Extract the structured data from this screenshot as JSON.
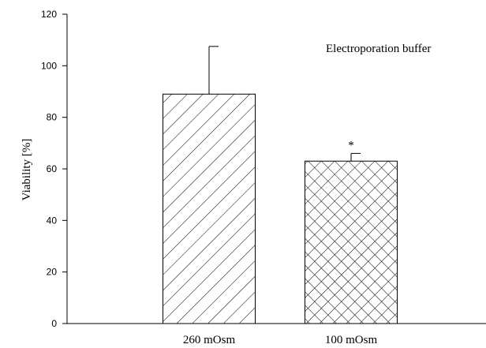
{
  "chart_data": {
    "type": "bar",
    "categories": [
      "260 mOsm",
      "100 mOsm"
    ],
    "values": [
      89,
      63
    ],
    "errors": [
      18.5,
      3
    ],
    "patterns": [
      "diagonal-hatch",
      "crosshatch"
    ],
    "significance": [
      "",
      "*"
    ],
    "title": "",
    "annotation": "Electroporation buffer",
    "xlabel": "",
    "ylabel": "Viability [%]",
    "ylim": [
      0,
      120
    ],
    "yticks": [
      "0",
      "20",
      "40",
      "60",
      "80",
      "100",
      "120"
    ],
    "grid": false,
    "colors": {
      "bar_fill": "#ffffff",
      "stroke": "#000000"
    }
  }
}
